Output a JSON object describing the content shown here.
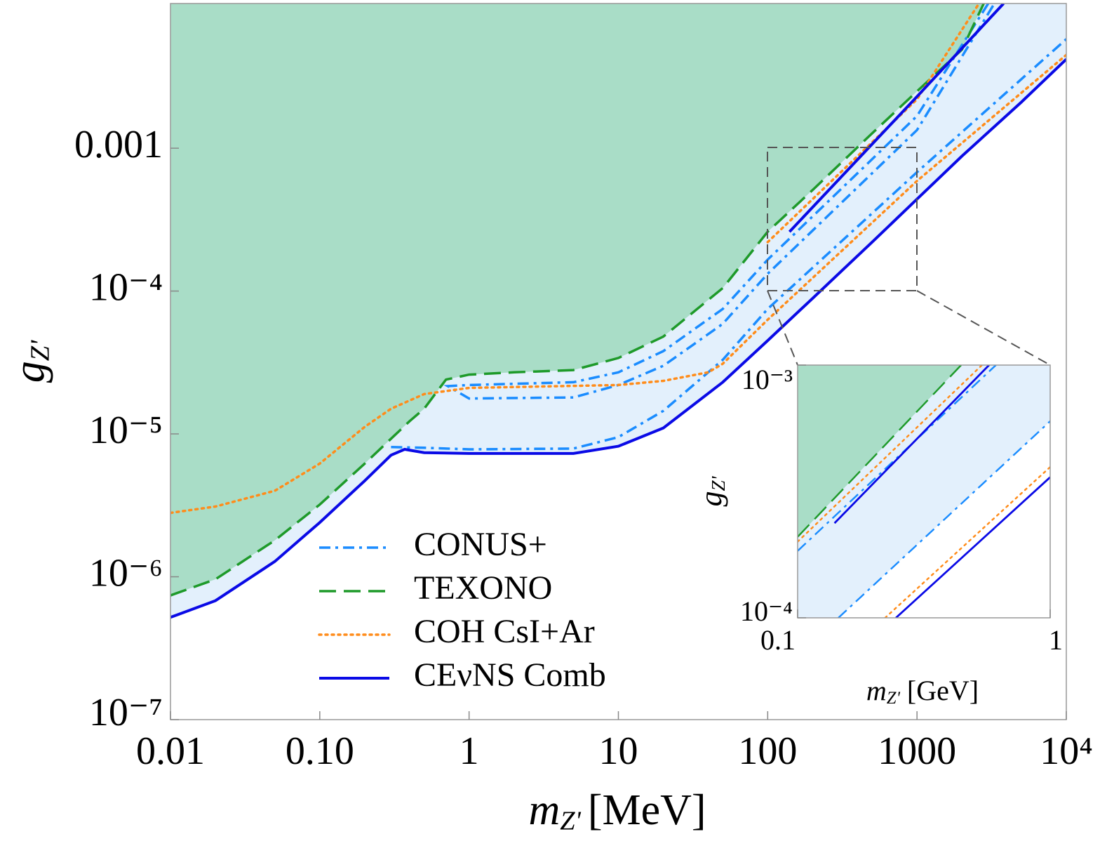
{
  "chart_data": [
    {
      "type": "line",
      "xscale": "log",
      "yscale": "log",
      "xlabel": {
        "symbol": "m",
        "subscript": "Z'",
        "unit": "[MeV]"
      },
      "ylabel": {
        "symbol": "g",
        "subscript": "Z'"
      },
      "xlim": [
        0.01,
        10000
      ],
      "ylim": [
        1e-07,
        0.0103
      ],
      "xticks": [
        0.01,
        {
          "value": 0.1,
          "label": "0.10"
        },
        1,
        10,
        100,
        1000,
        {
          "value": 10000,
          "label": "10⁴"
        }
      ],
      "yticks": [
        {
          "value": 1e-07,
          "label": "10⁻⁷"
        },
        {
          "value": 1e-06,
          "label": "10⁻⁶"
        },
        {
          "value": 1e-05,
          "label": "10⁻⁵"
        },
        {
          "value": 0.0001,
          "label": "10⁻⁴"
        },
        0.001
      ],
      "legend": "lower center",
      "series": [
        {
          "name": "CONUS+",
          "color": "#1a8cff",
          "style": "dashdot",
          "x": [
            3000,
            1000,
            100,
            50,
            20,
            10,
            5,
            1,
            0.72,
            1,
            5,
            10,
            20,
            50,
            100,
            1000,
            3300,
            null,
            0.3,
            0.5,
            1,
            5,
            10,
            20,
            50,
            100,
            1000,
            10000
          ],
          "values": [
            0.0103,
            0.00168,
            0.000166,
            7.5e-05,
            3.8e-05,
            2.7e-05,
            2.3e-05,
            2.2e-05,
            2.16e-05,
            1.77e-05,
            1.8e-05,
            2.2e-05,
            3e-05,
            5.9e-05,
            0.000132,
            0.00134,
            0.0103,
            null,
            8.1e-06,
            8e-06,
            7.8e-06,
            7.9e-06,
            9.5e-06,
            1.45e-05,
            3.3e-05,
            7.5e-05,
            0.00068,
            0.0058
          ]
        },
        {
          "name": "TEXONO",
          "color": "#1e9a2a",
          "style": "dashed",
          "fill": "#a9ddc7",
          "x": [
            0.01,
            0.02,
            0.05,
            0.1,
            0.2,
            0.4,
            0.5,
            0.7,
            1,
            2,
            5,
            10,
            20,
            50,
            100,
            200,
            500,
            1000,
            2000,
            2800
          ],
          "values": [
            7.4e-07,
            9.6e-07,
            1.8e-06,
            3.2e-06,
            6.2e-06,
            1.23e-05,
            1.5e-05,
            2.4e-05,
            2.6e-05,
            2.7e-05,
            2.8e-05,
            3.4e-05,
            4.8e-05,
            0.000105,
            0.00026,
            0.00051,
            0.00127,
            0.0025,
            0.0049,
            0.0103
          ]
        },
        {
          "name": "COH CsI+Ar",
          "color": "#ff8c1a",
          "style": "dotted",
          "x": [
            0.01,
            0.02,
            0.05,
            0.1,
            0.2,
            0.3,
            0.5,
            1,
            10,
            20,
            40,
            50,
            100,
            1000,
            10000,
            null,
            100,
            1000,
            2600
          ],
          "values": [
            2.8e-06,
            3.1e-06,
            4e-06,
            6.2e-06,
            1.12e-05,
            1.5e-05,
            1.9e-05,
            2.1e-05,
            2.2e-05,
            2.35e-05,
            2.7e-05,
            3.1e-05,
            6.3e-05,
            0.00059,
            0.0045,
            null,
            0.00022,
            0.0022,
            0.0103
          ]
        },
        {
          "name": "CEνNS Comb",
          "color": "#0a0ae6",
          "style": "solid",
          "fill": "#e3f0fc",
          "x": [
            0.01,
            0.02,
            0.05,
            0.1,
            0.2,
            0.3,
            0.37,
            0.5,
            1,
            5,
            10,
            20,
            50,
            100,
            200,
            500,
            1000,
            2000,
            5000,
            10000,
            null,
            140,
            1000,
            3800
          ],
          "values": [
            5.2e-07,
            6.8e-07,
            1.28e-06,
            2.4e-06,
            4.7e-06,
            7.1e-06,
            7.8e-06,
            7.4e-06,
            7.3e-06,
            7.3e-06,
            8.2e-06,
            1.1e-05,
            2.3e-05,
            4.5e-05,
            8.9e-05,
            0.00022,
            0.00044,
            0.00088,
            0.0021,
            0.0042,
            null,
            0.00026,
            0.0023,
            0.0103
          ]
        }
      ]
    },
    {
      "type": "line",
      "xscale": "log",
      "yscale": "log",
      "xlabel": {
        "symbol": "m",
        "subscript": "Z'",
        "unit": "[GeV]"
      },
      "ylabel": {
        "symbol": "g",
        "subscript": "Z'"
      },
      "xlim": [
        0.1,
        1
      ],
      "ylim": [
        0.0001,
        0.001
      ],
      "xticks": [
        0.1,
        1
      ],
      "yticks": [
        {
          "value": 0.0001,
          "label": "10⁻⁴"
        },
        {
          "value": 0.001,
          "label": "10⁻³"
        }
      ],
      "series": [
        {
          "name": "CONUS+",
          "color": "#1a8cff",
          "style": "dashdot",
          "fill": "#e3f0fc",
          "x": [
            0.145,
            1,
            null,
            0.1,
            0.61
          ],
          "values": [
            0.0001,
            0.0006,
            null,
            0.000184,
            0.001
          ]
        },
        {
          "name": "TEXONO",
          "color": "#1e9a2a",
          "style": "dashed",
          "fill": "#a9ddc7",
          "x": [
            0.1,
            0.444
          ],
          "values": [
            0.000209,
            0.001
          ]
        },
        {
          "name": "COH CsI+Ar",
          "color": "#ff8c1a",
          "style": "dotted",
          "x": [
            0.222,
            1,
            null,
            0.1,
            0.537
          ],
          "values": [
            0.0001,
            0.000395,
            null,
            0.0002,
            0.001
          ]
        },
        {
          "name": "CEνNS Comb",
          "color": "#0a0ae6",
          "style": "solid",
          "x": [
            0.245,
            1,
            null,
            0.14,
            0.573
          ],
          "values": [
            0.0001,
            0.00036,
            null,
            0.000237,
            0.001
          ]
        }
      ]
    }
  ]
}
